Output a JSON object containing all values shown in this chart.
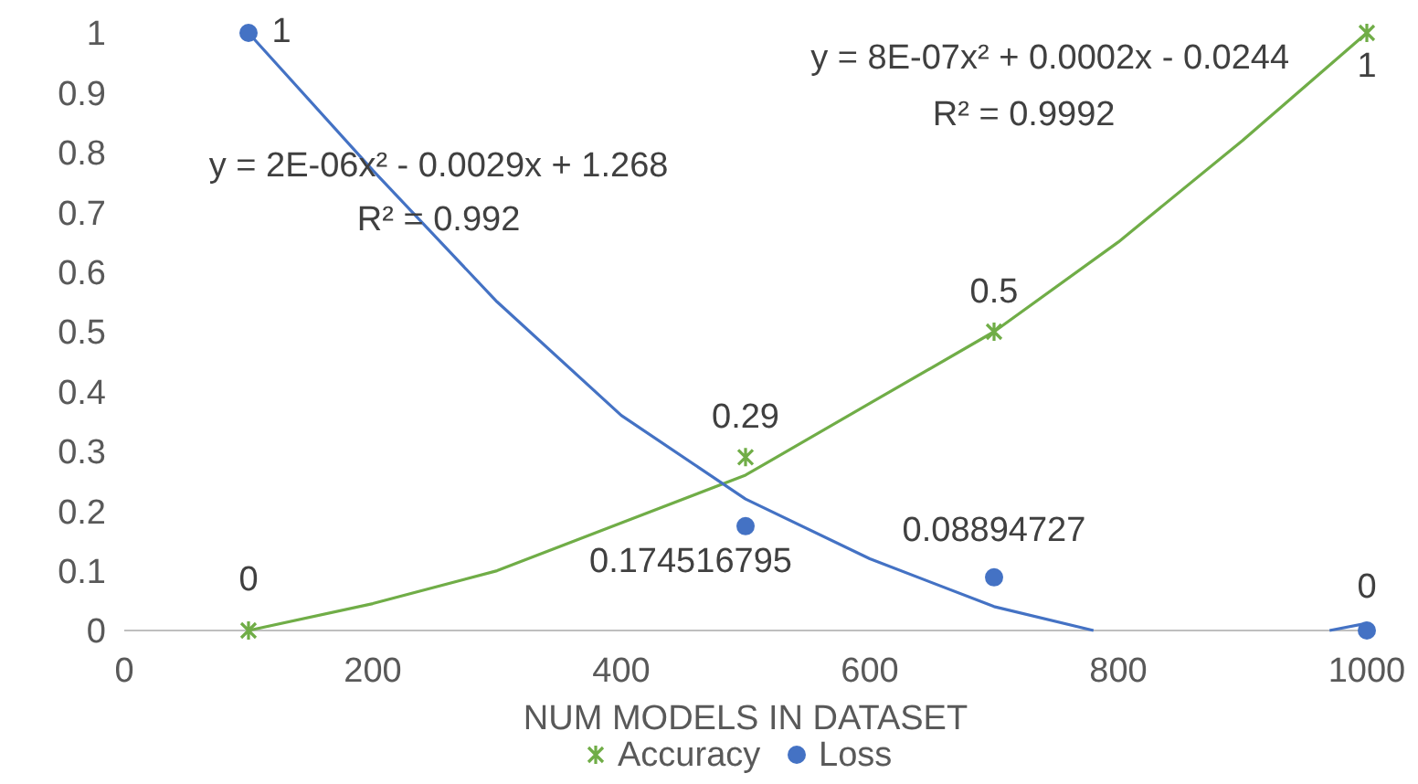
{
  "chart_data": {
    "type": "scatter",
    "xlabel": "NUM MODELS IN DATASET",
    "xlim": [
      0,
      1000
    ],
    "xticks": [
      0,
      200,
      400,
      600,
      800,
      1000
    ],
    "ylim": [
      0,
      1
    ],
    "yticks": [
      0,
      0.1,
      0.2,
      0.3,
      0.4,
      0.5,
      0.6,
      0.7,
      0.8,
      0.9,
      1
    ],
    "grid": false,
    "legend": "bottom",
    "series": [
      {
        "type": "line",
        "color": "#70ad47",
        "marker": "none",
        "line_style": "solid",
        "x": [
          100,
          200,
          300,
          400,
          500,
          600,
          700,
          800,
          900,
          1000
        ],
        "values": [
          0,
          0.045,
          0.1,
          0.18,
          0.26,
          0.38,
          0.5,
          0.65,
          0.82,
          1.0
        ]
      },
      {
        "type": "line",
        "color": "#4472c4",
        "marker": "none",
        "line_style": "solid",
        "x": [
          100,
          200,
          300,
          400,
          500,
          600,
          700,
          780,
          880,
          970,
          1000
        ],
        "values": [
          1.0,
          0.77,
          0.55,
          0.36,
          0.22,
          0.12,
          0.04,
          0,
          null,
          0,
          0.012
        ]
      },
      {
        "type": "scatter",
        "name": "Accuracy",
        "color": "#70ad47",
        "marker": "cross",
        "x": [
          100,
          500,
          700,
          1000
        ],
        "values": [
          0,
          0.29,
          0.5,
          1
        ],
        "value_labels": [
          "0",
          "0.29",
          "0.5",
          "1"
        ]
      },
      {
        "type": "scatter",
        "name": "Loss",
        "color": "#4472c4",
        "marker": "circle",
        "x": [
          100,
          500,
          700,
          1000
        ],
        "values": [
          1,
          0.174516795,
          0.08894727,
          0
        ],
        "value_labels": [
          "1",
          "0.174516795",
          "0.08894727",
          "0"
        ]
      }
    ],
    "annotations": [
      "y = 8E-07x² + 0.0002x - 0.0244",
      "R² = 0.9992",
      "y = 2E-06x² - 0.0029x + 1.268",
      "R² = 0.992"
    ]
  }
}
